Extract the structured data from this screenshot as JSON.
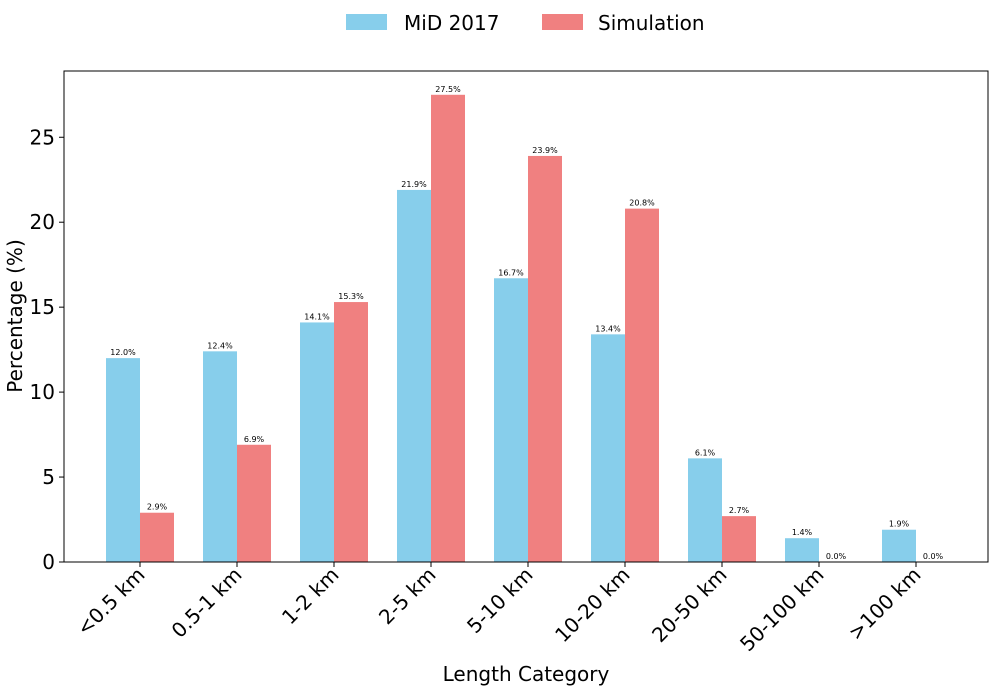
{
  "chart_data": {
    "type": "bar",
    "title": "",
    "xlabel": "Length Category",
    "ylabel": "Percentage (%)",
    "ylim": [
      0,
      28.9
    ],
    "yticks": [
      0,
      5,
      10,
      15,
      20,
      25
    ],
    "grid": false,
    "legend_position": "top-center, above plot",
    "categories": [
      "<0.5 km",
      "0.5-1 km",
      "1-2 km",
      "2-5 km",
      "5-10 km",
      "10-20 km",
      "20-50 km",
      "50-100 km",
      ">100 km"
    ],
    "series": [
      {
        "name": "MiD 2017",
        "color": "#87ceeb",
        "values": [
          12.0,
          12.4,
          14.1,
          21.9,
          16.7,
          13.4,
          6.1,
          1.4,
          1.9
        ],
        "labels": [
          "12.0%",
          "12.4%",
          "14.1%",
          "21.9%",
          "16.7%",
          "13.4%",
          "6.1%",
          "1.4%",
          "1.9%"
        ]
      },
      {
        "name": "Simulation",
        "color": "#f08080",
        "values": [
          2.9,
          6.9,
          15.3,
          27.5,
          23.9,
          20.8,
          2.7,
          0.0,
          0.0
        ],
        "labels": [
          "2.9%",
          "6.9%",
          "15.3%",
          "27.5%",
          "23.9%",
          "20.8%",
          "2.7%",
          "0.0%",
          "0.0%"
        ]
      }
    ]
  }
}
